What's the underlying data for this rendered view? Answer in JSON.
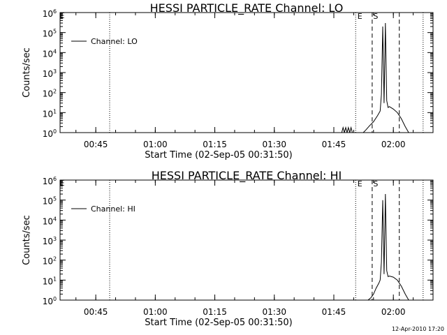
{
  "figure": {
    "timestamp": "12-Apr-2010 17:20"
  },
  "chart_data": [
    {
      "type": "line",
      "title": "HESSI PARTICLE_RATE Channel: LO",
      "xlabel": "Start Time (02-Sep-05 00:31:50)",
      "ylabel": "Counts/sec",
      "yscale": "log",
      "ylim": [
        1,
        1000000
      ],
      "y_tick_base": "10",
      "y_tick_exponents": [
        "0",
        "1",
        "2",
        "3",
        "4",
        "5",
        "6"
      ],
      "xlim": [
        "00:36:00",
        "02:10:00"
      ],
      "x_tick_labels": [
        "00:45",
        "01:00",
        "01:15",
        "01:30",
        "01:45",
        "02:00"
      ],
      "x_tick_times": [
        "00:45",
        "01:00",
        "01:15",
        "01:30",
        "01:45",
        "02:00"
      ],
      "legend": {
        "label": "Channel: LO",
        "position": "top-left"
      },
      "flags": [
        "E",
        "S"
      ],
      "dotted_lines": [
        "00:48:30",
        "01:50:30",
        "02:07:30"
      ],
      "dashed_lines": [
        "01:54:40",
        "02:01:30"
      ],
      "series": [
        {
          "name": "Channel: LO",
          "points": [
            [
              "01:47:00",
              1
            ],
            [
              "01:47:20",
              1.8
            ],
            [
              "01:47:40",
              1
            ],
            [
              "01:48:00",
              1.8
            ],
            [
              "01:48:20",
              1
            ],
            [
              "01:48:40",
              1.8
            ],
            [
              "01:49:00",
              1
            ],
            [
              "01:49:20",
              1.8
            ],
            [
              "01:49:40",
              1
            ],
            [
              "01:52:10",
              0.9
            ],
            [
              "01:53:00",
              1.3
            ],
            [
              "01:54:00",
              2.2
            ],
            [
              "01:55:00",
              3.5
            ],
            [
              "01:56:00",
              7
            ],
            [
              "01:56:40",
              12
            ],
            [
              "01:57:00",
              80
            ],
            [
              "01:57:20",
              200000
            ],
            [
              "01:57:40",
              30
            ],
            [
              "01:58:00",
              300000
            ],
            [
              "01:58:20",
              40
            ],
            [
              "01:58:40",
              18
            ],
            [
              "01:59:00",
              20
            ],
            [
              "02:00:00",
              15
            ],
            [
              "02:01:00",
              10
            ],
            [
              "02:02:00",
              5
            ],
            [
              "02:03:00",
              2
            ],
            [
              "02:04:00",
              0.9
            ]
          ]
        }
      ]
    },
    {
      "type": "line",
      "title": "HESSI PARTICLE_RATE Channel: HI",
      "xlabel": "Start Time (02-Sep-05 00:31:50)",
      "ylabel": "Counts/sec",
      "yscale": "log",
      "ylim": [
        1,
        1000000
      ],
      "y_tick_base": "10",
      "y_tick_exponents": [
        "0",
        "1",
        "2",
        "3",
        "4",
        "5",
        "6"
      ],
      "xlim": [
        "00:36:00",
        "02:10:00"
      ],
      "x_tick_labels": [
        "00:45",
        "01:00",
        "01:15",
        "01:30",
        "01:45",
        "02:00"
      ],
      "x_tick_times": [
        "00:45",
        "01:00",
        "01:15",
        "01:30",
        "01:45",
        "02:00"
      ],
      "legend": {
        "label": "Channel: HI",
        "position": "top-left"
      },
      "flags": [
        "E",
        "S"
      ],
      "dotted_lines": [
        "00:48:30",
        "01:50:30",
        "02:07:30"
      ],
      "dashed_lines": [
        "01:54:40",
        "02:01:30"
      ],
      "series": [
        {
          "name": "Channel: HI",
          "points": [
            [
              "01:53:20",
              0.9
            ],
            [
              "01:54:20",
              1.3
            ],
            [
              "01:55:00",
              2
            ],
            [
              "01:55:40",
              4
            ],
            [
              "01:56:20",
              7
            ],
            [
              "01:56:40",
              10
            ],
            [
              "01:57:00",
              80
            ],
            [
              "01:57:20",
              100000
            ],
            [
              "01:57:40",
              20
            ],
            [
              "01:58:00",
              200000
            ],
            [
              "01:58:20",
              30
            ],
            [
              "01:58:40",
              15
            ],
            [
              "01:59:00",
              16
            ],
            [
              "02:00:00",
              14
            ],
            [
              "02:01:00",
              10
            ],
            [
              "02:02:00",
              5
            ],
            [
              "02:03:00",
              2
            ],
            [
              "02:04:00",
              0.9
            ]
          ]
        }
      ]
    }
  ]
}
